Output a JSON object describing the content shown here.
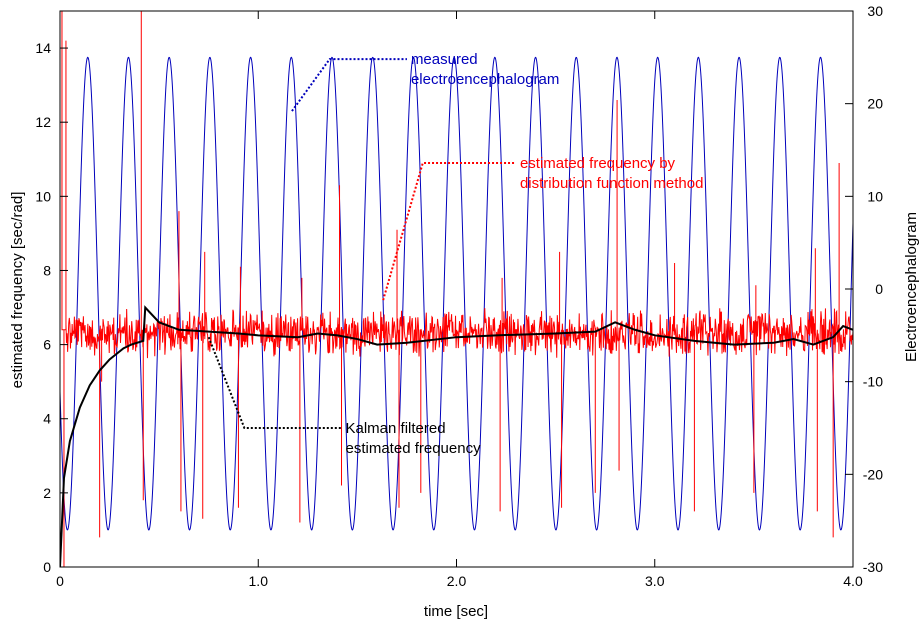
{
  "chart_data": {
    "type": "line",
    "title": "",
    "xlabel": "time [sec]",
    "ylabel": "estimated frequency [sec/rad]",
    "y2label": "Electroencephalogram",
    "xlim": [
      0,
      4.0
    ],
    "ylim": [
      0,
      15
    ],
    "y2lim": [
      -30,
      30
    ],
    "grid": false,
    "legend": "none",
    "x_ticks": [
      "0",
      "1.0",
      "2.0",
      "3.0",
      "4.0"
    ],
    "y_ticks": [
      "0",
      "2",
      "4",
      "6",
      "8",
      "10",
      "12",
      "14"
    ],
    "y2_ticks": [
      "-30",
      "-20",
      "-10",
      "0",
      "10",
      "20",
      "30"
    ],
    "series": [
      {
        "color": "#0000bb",
        "axis": "right",
        "kind": "sinusoid",
        "frequency_hz": 4.87,
        "amplitude": 25.5,
        "offset": -0.5,
        "first_peak_time": 0.14,
        "t_range": [
          0.0,
          4.0
        ]
      },
      {
        "color": "#ff0000",
        "axis": "left",
        "kind": "noisy_trace",
        "baseline": 6.4,
        "noise_band": [
          5.6,
          7.0
        ],
        "spikes": [
          {
            "t": 0.01,
            "v": 15
          },
          {
            "t": 0.02,
            "v": 0
          },
          {
            "t": 0.03,
            "v": 14.2
          },
          {
            "t": 0.11,
            "v": 6.6
          },
          {
            "t": 0.2,
            "v": 0.8
          },
          {
            "t": 0.21,
            "v": 5.0
          },
          {
            "t": 0.41,
            "v": 15
          },
          {
            "t": 0.42,
            "v": 1.8
          },
          {
            "t": 0.6,
            "v": 9.6
          },
          {
            "t": 0.61,
            "v": 1.5
          },
          {
            "t": 0.72,
            "v": 1.3
          },
          {
            "t": 0.73,
            "v": 8.5
          },
          {
            "t": 0.9,
            "v": 1.6
          },
          {
            "t": 0.91,
            "v": 8.1
          },
          {
            "t": 1.21,
            "v": 1.2
          },
          {
            "t": 1.22,
            "v": 7.8
          },
          {
            "t": 1.41,
            "v": 10.3
          },
          {
            "t": 1.42,
            "v": 2.2
          },
          {
            "t": 1.7,
            "v": 9.1
          },
          {
            "t": 1.71,
            "v": 1.6
          },
          {
            "t": 1.82,
            "v": 2.0
          },
          {
            "t": 2.22,
            "v": 1.5
          },
          {
            "t": 2.23,
            "v": 7.8
          },
          {
            "t": 2.52,
            "v": 8.5
          },
          {
            "t": 2.53,
            "v": 1.6
          },
          {
            "t": 2.7,
            "v": 2.0
          },
          {
            "t": 2.81,
            "v": 12.6
          },
          {
            "t": 2.82,
            "v": 2.6
          },
          {
            "t": 3.1,
            "v": 8.2
          },
          {
            "t": 3.2,
            "v": 1.5
          },
          {
            "t": 3.5,
            "v": 2.0
          },
          {
            "t": 3.51,
            "v": 7.6
          },
          {
            "t": 3.81,
            "v": 8.6
          },
          {
            "t": 3.82,
            "v": 1.5
          },
          {
            "t": 3.9,
            "v": 0.8
          },
          {
            "t": 3.93,
            "v": 10.9
          }
        ]
      },
      {
        "color": "#000000",
        "axis": "left",
        "kind": "step_line",
        "points": [
          [
            0.0,
            0
          ],
          [
            0.02,
            2.4
          ],
          [
            0.05,
            3.4
          ],
          [
            0.1,
            4.3
          ],
          [
            0.15,
            4.9
          ],
          [
            0.2,
            5.3
          ],
          [
            0.25,
            5.6
          ],
          [
            0.32,
            5.9
          ],
          [
            0.36,
            6.0
          ],
          [
            0.42,
            6.1
          ],
          [
            0.43,
            7.0
          ],
          [
            0.5,
            6.6
          ],
          [
            0.6,
            6.4
          ],
          [
            0.75,
            6.35
          ],
          [
            0.9,
            6.3
          ],
          [
            1.0,
            6.25
          ],
          [
            1.2,
            6.2
          ],
          [
            1.3,
            6.3
          ],
          [
            1.4,
            6.25
          ],
          [
            1.5,
            6.15
          ],
          [
            1.6,
            6.0
          ],
          [
            1.75,
            6.05
          ],
          [
            2.0,
            6.2
          ],
          [
            2.2,
            6.25
          ],
          [
            2.5,
            6.3
          ],
          [
            2.7,
            6.35
          ],
          [
            2.8,
            6.6
          ],
          [
            2.9,
            6.4
          ],
          [
            3.0,
            6.25
          ],
          [
            3.2,
            6.1
          ],
          [
            3.4,
            6.0
          ],
          [
            3.6,
            6.05
          ],
          [
            3.7,
            6.15
          ],
          [
            3.8,
            6.0
          ],
          [
            3.9,
            6.2
          ],
          [
            3.95,
            6.5
          ],
          [
            4.0,
            6.4
          ]
        ]
      }
    ],
    "annotations": [
      {
        "lines": [
          "measured",
          "electroencephalogram"
        ],
        "color": "#0000bb",
        "points_to": [
          1.17,
          12.3
        ],
        "corner": [
          1.36,
          13.7
        ],
        "anchor": [
          1.75,
          13.7
        ]
      },
      {
        "lines": [
          "estimated frequency by",
          "distribution function method"
        ],
        "color": "#ff0000",
        "points_to": [
          1.63,
          7.2
        ],
        "corner": [
          1.83,
          10.9
        ],
        "anchor": [
          2.3,
          10.9
        ]
      },
      {
        "lines": [
          "Kalman filtered",
          "estimated frequency"
        ],
        "color": "#000000",
        "points_to": [
          0.75,
          6.2
        ],
        "corner": [
          0.93,
          3.75
        ],
        "anchor": [
          1.42,
          3.75
        ]
      }
    ]
  }
}
